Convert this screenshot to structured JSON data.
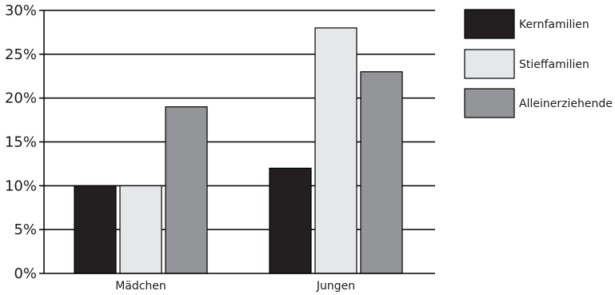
{
  "chart_data": {
    "type": "bar",
    "categories": [
      "Mädchen",
      "Jungen"
    ],
    "series": [
      {
        "name": "Kernfamilien",
        "values": [
          10,
          12
        ],
        "color": "#231f20"
      },
      {
        "name": "Stieffamilien",
        "values": [
          10,
          28
        ],
        "color": "#e6e7e8"
      },
      {
        "name": "Alleinerziehende",
        "values": [
          19,
          23
        ],
        "color": "#939598"
      }
    ],
    "ylim": [
      0,
      30
    ],
    "yticks": [
      0,
      5,
      10,
      15,
      20,
      25,
      30
    ],
    "ytick_labels": [
      "0%",
      "5%",
      "10%",
      "15%",
      "20%",
      "25%",
      "30%"
    ],
    "grid": true,
    "legend_position": "right",
    "title": "",
    "xlabel": "",
    "ylabel": ""
  }
}
